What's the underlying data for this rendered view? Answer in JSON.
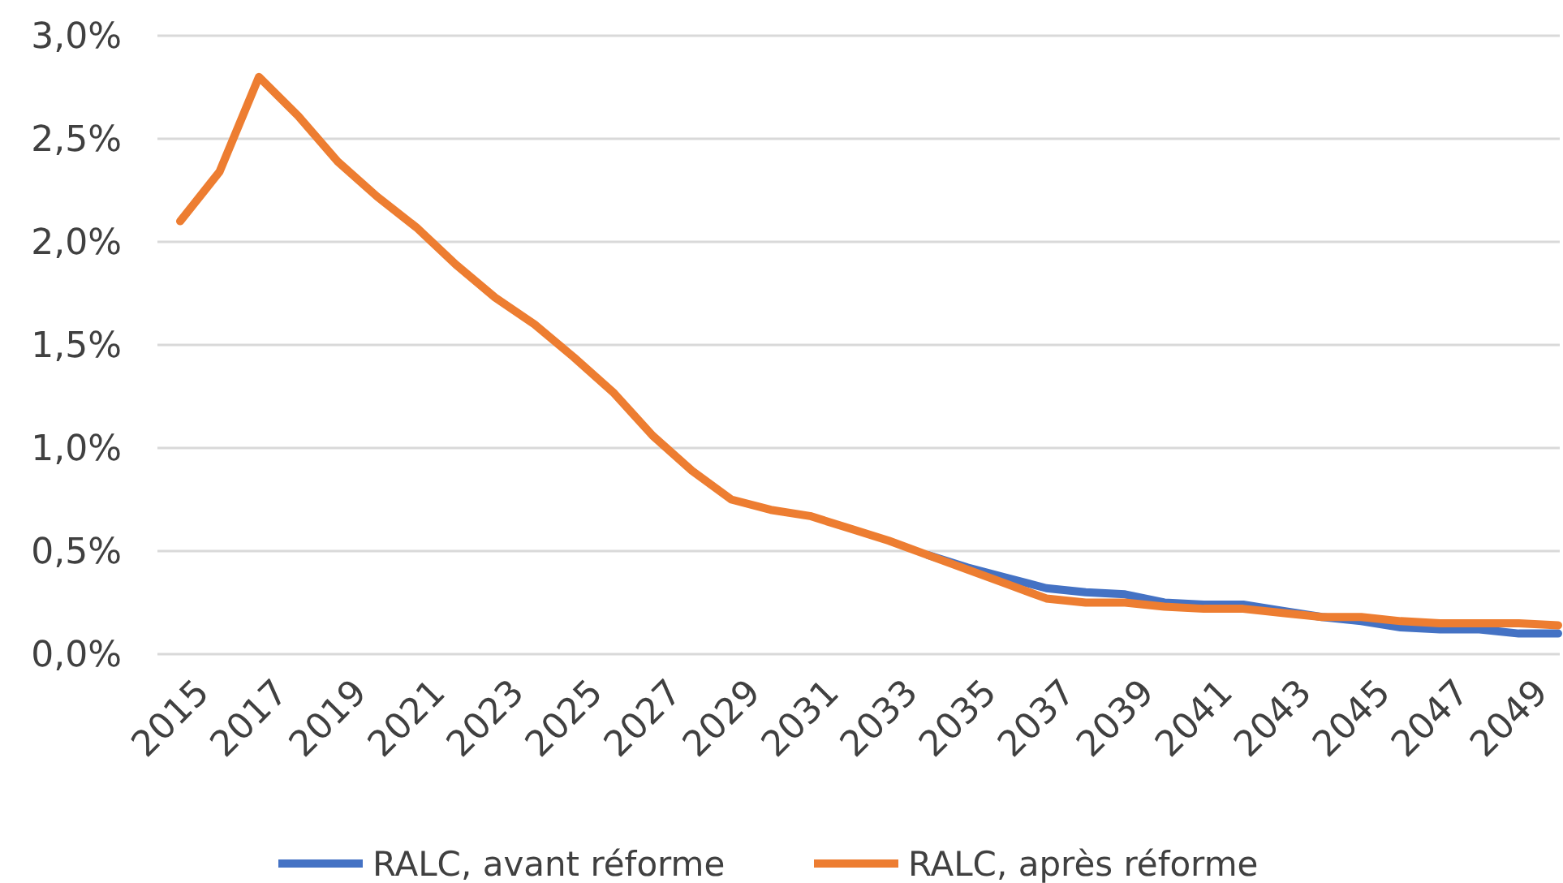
{
  "chart_data": {
    "type": "line",
    "categories": [
      "2015",
      null,
      "2017",
      null,
      "2019",
      null,
      "2021",
      null,
      "2023",
      null,
      "2025",
      null,
      "2027",
      null,
      "2029",
      null,
      "2031",
      null,
      "2033",
      null,
      "2035",
      null,
      "2037",
      null,
      "2039",
      null,
      "2041",
      null,
      "2043",
      null,
      "2045",
      null,
      "2047",
      null,
      "2049",
      null
    ],
    "series": [
      {
        "name": "RALC, avant réforme",
        "color": "#4472c4",
        "values": [
          null,
          null,
          null,
          null,
          null,
          null,
          null,
          null,
          null,
          null,
          null,
          null,
          null,
          null,
          null,
          null,
          null,
          null,
          null,
          0.48,
          0.42,
          0.37,
          0.32,
          0.3,
          0.29,
          0.25,
          0.24,
          0.24,
          0.21,
          0.18,
          0.16,
          0.13,
          0.12,
          0.12,
          0.1,
          0.1
        ]
      },
      {
        "name": "RALC, après réforme",
        "color": "#ed7d31",
        "values": [
          2.1,
          2.34,
          2.8,
          2.61,
          2.39,
          2.22,
          2.07,
          1.89,
          1.73,
          1.6,
          1.44,
          1.27,
          1.06,
          0.89,
          0.75,
          0.7,
          0.67,
          0.61,
          0.55,
          0.48,
          0.41,
          0.34,
          0.27,
          0.25,
          0.25,
          0.23,
          0.22,
          0.22,
          0.2,
          0.18,
          0.18,
          0.16,
          0.15,
          0.15,
          0.15,
          0.14
        ]
      }
    ],
    "ylim": [
      0,
      3
    ],
    "yticks": [
      {
        "value": 0,
        "label": "0,0%"
      },
      {
        "value": 0.5,
        "label": "0,5%"
      },
      {
        "value": 1,
        "label": "1,0%"
      },
      {
        "value": 1.5,
        "label": "1,5%"
      },
      {
        "value": 2,
        "label": "2,0%"
      },
      {
        "value": 2.5,
        "label": "2,5%"
      },
      {
        "value": 3,
        "label": "3,0%"
      }
    ],
    "grid": "y",
    "legend": "bottom",
    "line_style": "solid",
    "marker": "none"
  }
}
